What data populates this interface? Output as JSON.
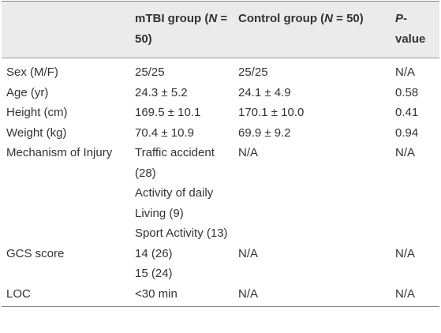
{
  "table": {
    "header": [
      [],
      [
        {
          "text": "mTBI group ("
        },
        {
          "text": "N",
          "italic": true
        },
        {
          "text": " = 50)"
        }
      ],
      [
        {
          "text": "Control group ("
        },
        {
          "text": "N",
          "italic": true
        },
        {
          "text": " = 50)"
        }
      ],
      [
        {
          "text": "P",
          "italic": true
        },
        {
          "text": "-value"
        }
      ]
    ],
    "rows": [
      [
        "Sex (M/F)",
        "25/25",
        "25/25",
        "N/A"
      ],
      [
        "Age (yr)",
        "24.3 ± 5.2",
        "24.1 ± 4.9",
        "0.58"
      ],
      [
        "Height (cm)",
        "169.5 ± 10.1",
        "170.1 ± 10.0",
        "0.41"
      ],
      [
        "Weight (kg)",
        "70.4 ± 10.9",
        "69.9 ± 9.2",
        "0.94"
      ],
      [
        "Mechanism of Injury",
        [
          "Traffic accident (28)",
          "Activity of daily Living (9)",
          "Sport Activity (13)"
        ],
        "N/A",
        "N/A"
      ],
      [
        "GCS score",
        [
          "14 (26)",
          "15 (24)"
        ],
        "N/A",
        "N/A"
      ],
      [
        "LOC",
        "<30 min",
        "N/A",
        "N/A"
      ]
    ]
  }
}
